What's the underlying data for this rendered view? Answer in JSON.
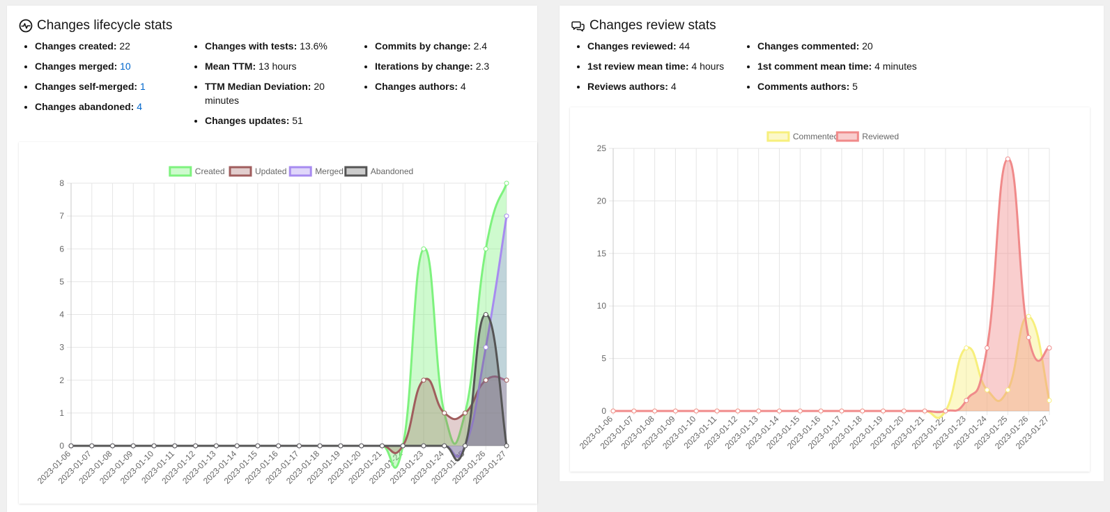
{
  "lifecycle": {
    "title": "Changes lifecycle stats",
    "col1": [
      {
        "label": "Changes created:",
        "value": "22",
        "link": false
      },
      {
        "label": "Changes merged:",
        "value": "10",
        "link": true
      },
      {
        "label": "Changes self-merged:",
        "value": "1",
        "link": true
      },
      {
        "label": "Changes abandoned:",
        "value": "4",
        "link": true
      }
    ],
    "col2": [
      {
        "label": "Changes with tests:",
        "value": "13.6%",
        "link": false
      },
      {
        "label": "Mean TTM:",
        "value": "13 hours",
        "link": false
      },
      {
        "label": "TTM Median Deviation:",
        "value": "20 minutes",
        "link": false
      },
      {
        "label": "Changes updates:",
        "value": "51",
        "link": false
      }
    ],
    "col3": [
      {
        "label": "Commits by change:",
        "value": "2.4",
        "link": false
      },
      {
        "label": "Iterations by change:",
        "value": "2.3",
        "link": false
      },
      {
        "label": "Changes authors:",
        "value": "4",
        "link": false
      }
    ]
  },
  "review": {
    "title": "Changes review stats",
    "col1": [
      {
        "label": "Changes reviewed:",
        "value": "44",
        "link": false
      },
      {
        "label": "1st review mean time:",
        "value": "4 hours",
        "link": false
      },
      {
        "label": "Reviews authors:",
        "value": "4",
        "link": false
      }
    ],
    "col2": [
      {
        "label": "Changes commented:",
        "value": "20",
        "link": false
      },
      {
        "label": "1st comment mean time:",
        "value": "4 minutes",
        "link": false
      },
      {
        "label": "Comments authors:",
        "value": "5",
        "link": false
      }
    ]
  },
  "chart_data": [
    {
      "type": "area",
      "title": "",
      "xlabel": "",
      "ylabel": "",
      "ylim": [
        0,
        8
      ],
      "yticks": [
        0,
        1,
        2,
        3,
        4,
        5,
        6,
        7,
        8
      ],
      "grid": true,
      "legend_position": "top",
      "categories": [
        "2023-01-06",
        "2023-01-07",
        "2023-01-08",
        "2023-01-09",
        "2023-01-10",
        "2023-01-11",
        "2023-01-12",
        "2023-01-13",
        "2023-01-14",
        "2023-01-15",
        "2023-01-16",
        "2023-01-17",
        "2023-01-18",
        "2023-01-19",
        "2023-01-20",
        "2023-01-21",
        "2023-01-22",
        "2023-01-23",
        "2023-01-24",
        "2023-01-25",
        "2023-01-26",
        "2023-01-27"
      ],
      "series": [
        {
          "name": "Created",
          "color": "#7ef27e",
          "fill": "rgba(126,242,126,0.38)",
          "values": [
            0,
            0,
            0,
            0,
            0,
            0,
            0,
            0,
            0,
            0,
            0,
            0,
            0,
            0,
            0,
            0,
            0,
            6,
            1,
            1,
            6,
            8
          ]
        },
        {
          "name": "Updated",
          "color": "#a05d5d",
          "fill": "rgba(160,93,93,0.30)",
          "values": [
            0,
            0,
            0,
            0,
            0,
            0,
            0,
            0,
            0,
            0,
            0,
            0,
            0,
            0,
            0,
            0,
            0,
            2,
            1,
            1,
            2,
            2
          ]
        },
        {
          "name": "Merged",
          "color": "#a78bf0",
          "fill": "rgba(167,139,240,0.35)",
          "values": [
            0,
            0,
            0,
            0,
            0,
            0,
            0,
            0,
            0,
            0,
            0,
            0,
            0,
            0,
            0,
            0,
            0,
            0,
            0,
            0,
            3,
            7
          ]
        },
        {
          "name": "Abandoned",
          "color": "#555555",
          "fill": "rgba(85,85,85,0.30)",
          "values": [
            0,
            0,
            0,
            0,
            0,
            0,
            0,
            0,
            0,
            0,
            0,
            0,
            0,
            0,
            0,
            0,
            0,
            0,
            0,
            0,
            4,
            0
          ]
        }
      ]
    },
    {
      "type": "area",
      "title": "",
      "xlabel": "",
      "ylabel": "",
      "ylim": [
        0,
        25
      ],
      "yticks": [
        0,
        5,
        10,
        15,
        20,
        25
      ],
      "grid": true,
      "legend_position": "top",
      "categories": [
        "2023-01-06",
        "2023-01-07",
        "2023-01-08",
        "2023-01-09",
        "2023-01-10",
        "2023-01-11",
        "2023-01-12",
        "2023-01-13",
        "2023-01-14",
        "2023-01-15",
        "2023-01-16",
        "2023-01-17",
        "2023-01-18",
        "2023-01-19",
        "2023-01-20",
        "2023-01-21",
        "2023-01-22",
        "2023-01-23",
        "2023-01-24",
        "2023-01-25",
        "2023-01-26",
        "2023-01-27"
      ],
      "series": [
        {
          "name": "Commented",
          "color": "#f7ef7c",
          "fill": "rgba(247,239,124,0.42)",
          "values": [
            0,
            0,
            0,
            0,
            0,
            0,
            0,
            0,
            0,
            0,
            0,
            0,
            0,
            0,
            0,
            0,
            0,
            6,
            2,
            2,
            9,
            1
          ]
        },
        {
          "name": "Reviewed",
          "color": "#f08a8a",
          "fill": "rgba(240,138,138,0.42)",
          "values": [
            0,
            0,
            0,
            0,
            0,
            0,
            0,
            0,
            0,
            0,
            0,
            0,
            0,
            0,
            0,
            0,
            0,
            1,
            6,
            24,
            7,
            6
          ]
        }
      ]
    }
  ]
}
